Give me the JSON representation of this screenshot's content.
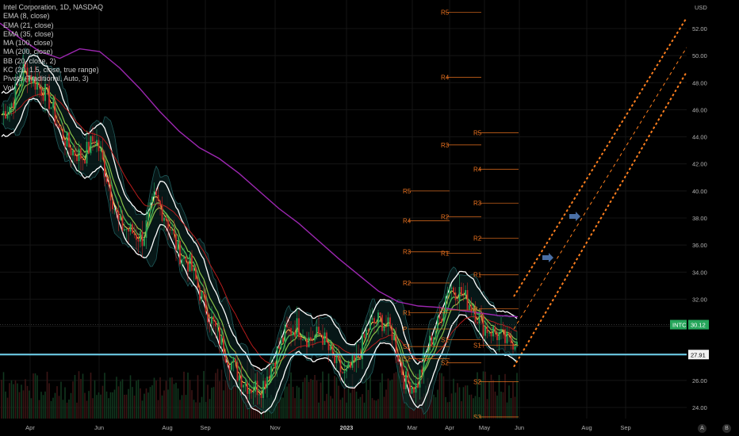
{
  "legend": {
    "rows": [
      "Intel Corporation, 1D, NASDAQ",
      "EMA (8, close)",
      "EMA (21, close)",
      "EMA (35, close)",
      "MA (100, close)",
      "MA (200, close)",
      "BB (20, close, 2)",
      "KC (20, 1.5, close, true range)",
      "Pivots (Traditional, Auto, 3)",
      "Vol"
    ]
  },
  "corner_buttons": {
    "auto": "A",
    "log": "B"
  },
  "colors": {
    "background": "#000000",
    "ema8": "#ffd54f",
    "ema21": "#4caf50",
    "ema35": "#8bc34a",
    "ma100": "#b71c1c",
    "ma200": "#9c27b0",
    "bands": "#ffffff",
    "pivot": "#e8711f",
    "channel": "#ff7f1e",
    "support": "#6fd3ef",
    "price_tag": "#26a65b",
    "arrow": "#4a6fa5"
  },
  "chart_data": {
    "type": "candlestick",
    "symbol": "INTC",
    "currency": "USD",
    "y_ticks": [
      "52.00",
      "50.00",
      "48.00",
      "46.00",
      "44.00",
      "42.00",
      "40.00",
      "38.00",
      "36.00",
      "34.00",
      "32.00",
      "30.00",
      "28.00",
      "26.00",
      "24.00"
    ],
    "x_ticks": [
      "Apr",
      "Jun",
      "Aug",
      "Sep",
      "Nov",
      "2023",
      "Mar",
      "Apr",
      "May",
      "Jun",
      "Aug",
      "Sep"
    ],
    "ylim": [
      23.0,
      53.5
    ],
    "last_price": {
      "label": "INTC",
      "value": "30.12"
    },
    "support_level": {
      "value": "27.91",
      "price": 27.91
    },
    "moving_average_200": [
      [
        0,
        52.4
      ],
      [
        40,
        51.3
      ],
      [
        80,
        50.3
      ],
      [
        120,
        49.8
      ],
      [
        160,
        50.5
      ],
      [
        200,
        50.3
      ],
      [
        240,
        49.1
      ],
      [
        280,
        47.6
      ],
      [
        320,
        45.9
      ],
      [
        360,
        44.4
      ],
      [
        400,
        43.2
      ],
      [
        440,
        42.4
      ],
      [
        480,
        41.3
      ],
      [
        520,
        40.0
      ],
      [
        560,
        38.7
      ],
      [
        600,
        37.6
      ],
      [
        640,
        36.3
      ],
      [
        680,
        35.0
      ],
      [
        720,
        33.8
      ],
      [
        760,
        32.6
      ],
      [
        800,
        31.8
      ],
      [
        840,
        31.5
      ],
      [
        880,
        31.4
      ],
      [
        920,
        31.2
      ],
      [
        960,
        31.0
      ],
      [
        1000,
        30.8
      ],
      [
        1040,
        30.7
      ]
    ],
    "pivot_sets": [
      {
        "levels": [
          {
            "label": "R5",
            "price": 40.0
          },
          {
            "label": "R4",
            "price": 37.8
          },
          {
            "label": "R3",
            "price": 35.5
          },
          {
            "label": "R2",
            "price": 33.2
          },
          {
            "label": "R1",
            "price": 31.0
          },
          {
            "label": "P",
            "price": 29.8
          },
          {
            "label": "S1",
            "price": 28.5
          },
          {
            "label": "S2",
            "price": 27.6
          }
        ]
      },
      {
        "levels": [
          {
            "label": "R5",
            "price": 53.2
          },
          {
            "label": "R4",
            "price": 48.4
          },
          {
            "label": "R3",
            "price": 43.4
          },
          {
            "label": "R2",
            "price": 38.1
          },
          {
            "label": "R1",
            "price": 35.4
          },
          {
            "label": "P",
            "price": 31.2
          },
          {
            "label": "S1",
            "price": 29.0
          },
          {
            "label": "S2",
            "price": 27.3
          }
        ]
      },
      {
        "levels": [
          {
            "label": "R5",
            "price": 44.3
          },
          {
            "label": "R4",
            "price": 41.6
          },
          {
            "label": "R3",
            "price": 39.1
          },
          {
            "label": "R2",
            "price": 36.5
          },
          {
            "label": "R1",
            "price": 33.8
          },
          {
            "label": "P",
            "price": 31.3
          },
          {
            "label": "S1",
            "price": 28.6
          },
          {
            "label": "S2",
            "price": 25.9
          },
          {
            "label": "S3",
            "price": 23.3
          }
        ]
      }
    ],
    "channel": {
      "upper_start": [
        32.2,
        52.8
      ],
      "mid_start": [
        29.8,
        50.6
      ],
      "lower_start": [
        27.0,
        48.8
      ]
    }
  }
}
